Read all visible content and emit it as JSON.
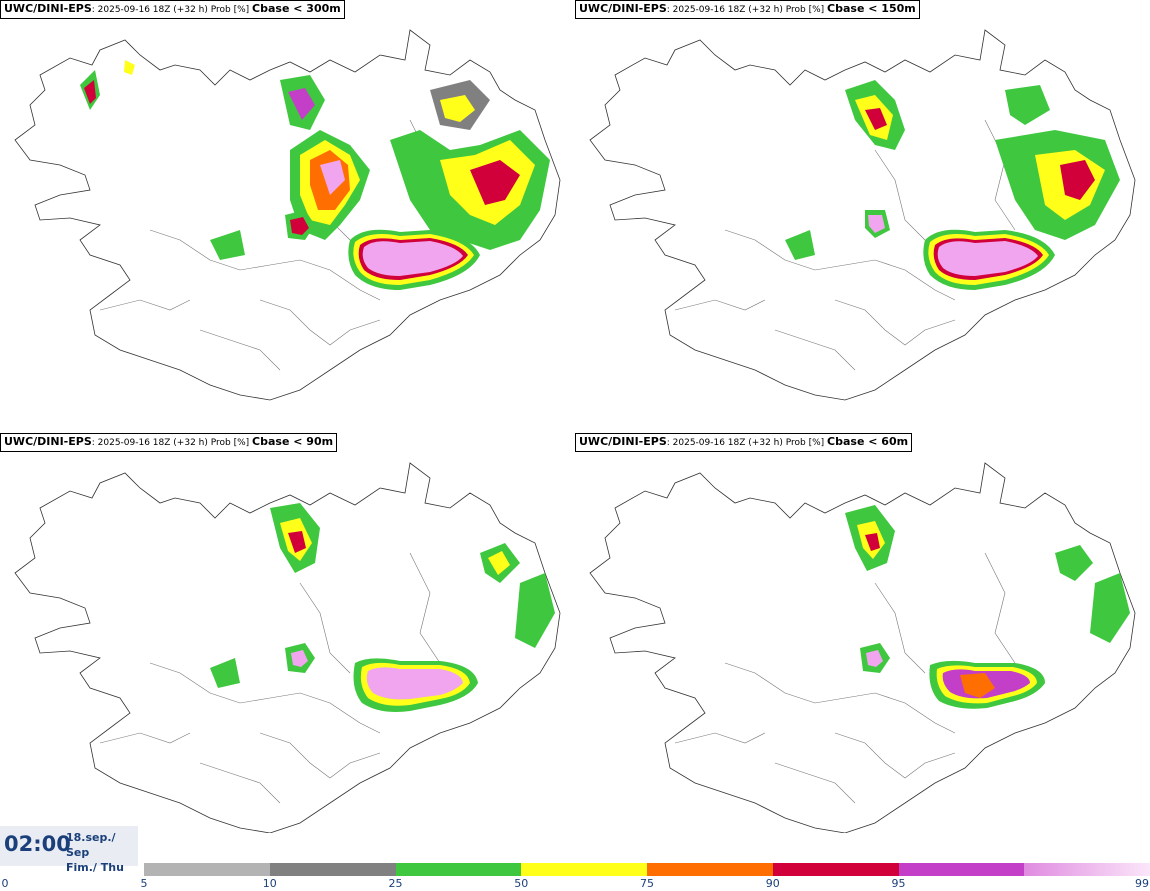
{
  "panels": [
    {
      "model": "UWC/DINI-EPS",
      "run": ": 2025-09-16 18Z (+32 h) Prob [%]",
      "param": "Cbase < 300m"
    },
    {
      "model": "UWC/DINI-EPS",
      "run": ": 2025-09-16 18Z (+32 h) Prob [%]",
      "param": "Cbase < 150m"
    },
    {
      "model": "UWC/DINI-EPS",
      "run": ": 2025-09-16 18Z (+32 h) Prob [%]",
      "param": "Cbase < 90m"
    },
    {
      "model": "UWC/DINI-EPS",
      "run": ": 2025-09-16 18Z (+32 h) Prob [%]",
      "param": "Cbase < 60m"
    }
  ],
  "valid_time": {
    "time": "02:00",
    "date_line1": "18.sep./ Sep",
    "date_line2": "Fim./ Thu"
  },
  "colorbar": {
    "ticks": [
      "0",
      "5",
      "10",
      "25",
      "50",
      "75",
      "90",
      "95",
      "99"
    ],
    "colors": [
      "#b3b3b3",
      "#808080",
      "#3fc83f",
      "#ffff1a",
      "#ff6e00",
      "#d1003a",
      "#c43fc8",
      "#f7c4f2"
    ]
  }
}
